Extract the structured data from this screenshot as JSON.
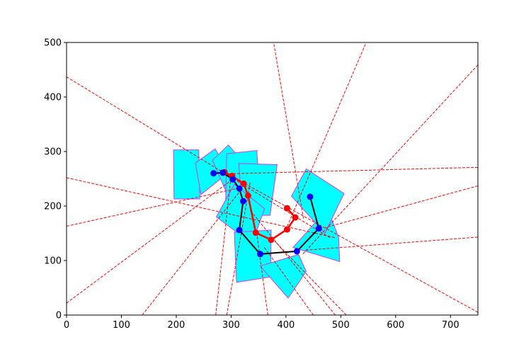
{
  "chart_data": {
    "type": "scatter",
    "title": "",
    "xlabel": "",
    "ylabel": "",
    "xlim": [
      0,
      750
    ],
    "ylim": [
      0,
      500
    ],
    "x_ticks": [
      0,
      100,
      200,
      300,
      400,
      500,
      600,
      700
    ],
    "y_ticks": [
      0,
      100,
      200,
      300,
      400,
      500
    ],
    "grid": false,
    "legend": "none",
    "colors": {
      "square_fill": "#00ffff",
      "square_edge": "#d633ff",
      "ray": "#ff0000",
      "black_chain": "#000000",
      "red_chain": "#ff0000",
      "blue_marker": "#0000ff",
      "red_marker": "#ff0000"
    },
    "squares": [
      [
        [
          195,
          303
        ],
        [
          241,
          303
        ],
        [
          243,
          213
        ],
        [
          196,
          213
        ]
      ],
      [
        [
          235,
          279
        ],
        [
          271,
          305
        ],
        [
          296,
          262
        ],
        [
          245,
          221
        ]
      ],
      [
        [
          266,
          284
        ],
        [
          295,
          312
        ],
        [
          338,
          264
        ],
        [
          292,
          224
        ]
      ],
      [
        [
          292,
          296
        ],
        [
          347,
          302
        ],
        [
          352,
          215
        ],
        [
          290,
          208
        ]
      ],
      [
        [
          314,
          278
        ],
        [
          384,
          276
        ],
        [
          371,
          183
        ],
        [
          321,
          183
        ]
      ],
      [
        [
          273,
          180
        ],
        [
          306,
          240
        ],
        [
          361,
          195
        ],
        [
          338,
          131
        ]
      ],
      [
        [
          306,
          152
        ],
        [
          373,
          156
        ],
        [
          372,
          70
        ],
        [
          310,
          60
        ]
      ],
      [
        [
          353,
          90
        ],
        [
          404,
          31
        ],
        [
          437,
          80
        ],
        [
          423,
          111
        ]
      ],
      [
        [
          413,
          124
        ],
        [
          498,
          98
        ],
        [
          496,
          143
        ],
        [
          476,
          195
        ]
      ],
      [
        [
          410,
          218
        ],
        [
          437,
          268
        ],
        [
          506,
          223
        ],
        [
          471,
          150
        ]
      ]
    ],
    "rays": [
      [
        [
          0,
          437
        ],
        [
          480,
          142
        ]
      ],
      [
        [
          0,
          252
        ],
        [
          490,
          142
        ]
      ],
      [
        [
          0,
          163
        ],
        [
          310,
          232
        ]
      ],
      [
        [
          0,
          22
        ],
        [
          300,
          247
        ]
      ],
      [
        [
          378,
          497
        ],
        [
          432,
          177
        ]
      ],
      [
        [
          545,
          497
        ],
        [
          402,
          162
        ]
      ],
      [
        [
          750,
          459
        ],
        [
          430,
          111
        ]
      ],
      [
        [
          750,
          271
        ],
        [
          290,
          259
        ]
      ],
      [
        [
          750,
          237
        ],
        [
          470,
          160
        ]
      ],
      [
        [
          750,
          143
        ],
        [
          436,
          119
        ]
      ],
      [
        [
          750,
          5
        ],
        [
          280,
          266
        ]
      ],
      [
        [
          138,
          0
        ],
        [
          320,
          232
        ]
      ],
      [
        [
          272,
          0
        ],
        [
          301,
          264
        ]
      ],
      [
        [
          292,
          0
        ],
        [
          335,
          244
        ]
      ],
      [
        [
          367,
          0
        ],
        [
          347,
          149
        ]
      ],
      [
        [
          450,
          0
        ],
        [
          360,
          125
        ]
      ],
      [
        [
          490,
          0
        ],
        [
          335,
          192
        ]
      ],
      [
        [
          510,
          0
        ],
        [
          380,
          135
        ]
      ]
    ],
    "black_chain": [
      [
        268,
        260
      ],
      [
        285,
        261
      ],
      [
        303,
        249
      ],
      [
        315,
        232
      ],
      [
        322,
        209
      ],
      [
        315,
        156
      ],
      [
        353,
        112
      ],
      [
        420,
        117
      ],
      [
        460,
        159
      ],
      [
        444,
        217
      ]
    ],
    "red_chain": [
      [
        288,
        262
      ],
      [
        302,
        255
      ],
      [
        323,
        241
      ],
      [
        331,
        219
      ],
      [
        345,
        151
      ],
      [
        373,
        138
      ],
      [
        402,
        157
      ],
      [
        417,
        179
      ],
      [
        402,
        196
      ]
    ],
    "blue_markers": [
      [
        268,
        260
      ],
      [
        285,
        261
      ],
      [
        303,
        249
      ],
      [
        315,
        232
      ],
      [
        322,
        209
      ],
      [
        315,
        156
      ],
      [
        353,
        112
      ],
      [
        420,
        117
      ],
      [
        460,
        159
      ],
      [
        444,
        217
      ]
    ],
    "red_markers": [
      [
        288,
        262
      ],
      [
        302,
        255
      ],
      [
        323,
        241
      ],
      [
        331,
        219
      ],
      [
        345,
        151
      ],
      [
        373,
        138
      ],
      [
        402,
        157
      ],
      [
        417,
        179
      ],
      [
        402,
        196
      ]
    ]
  }
}
